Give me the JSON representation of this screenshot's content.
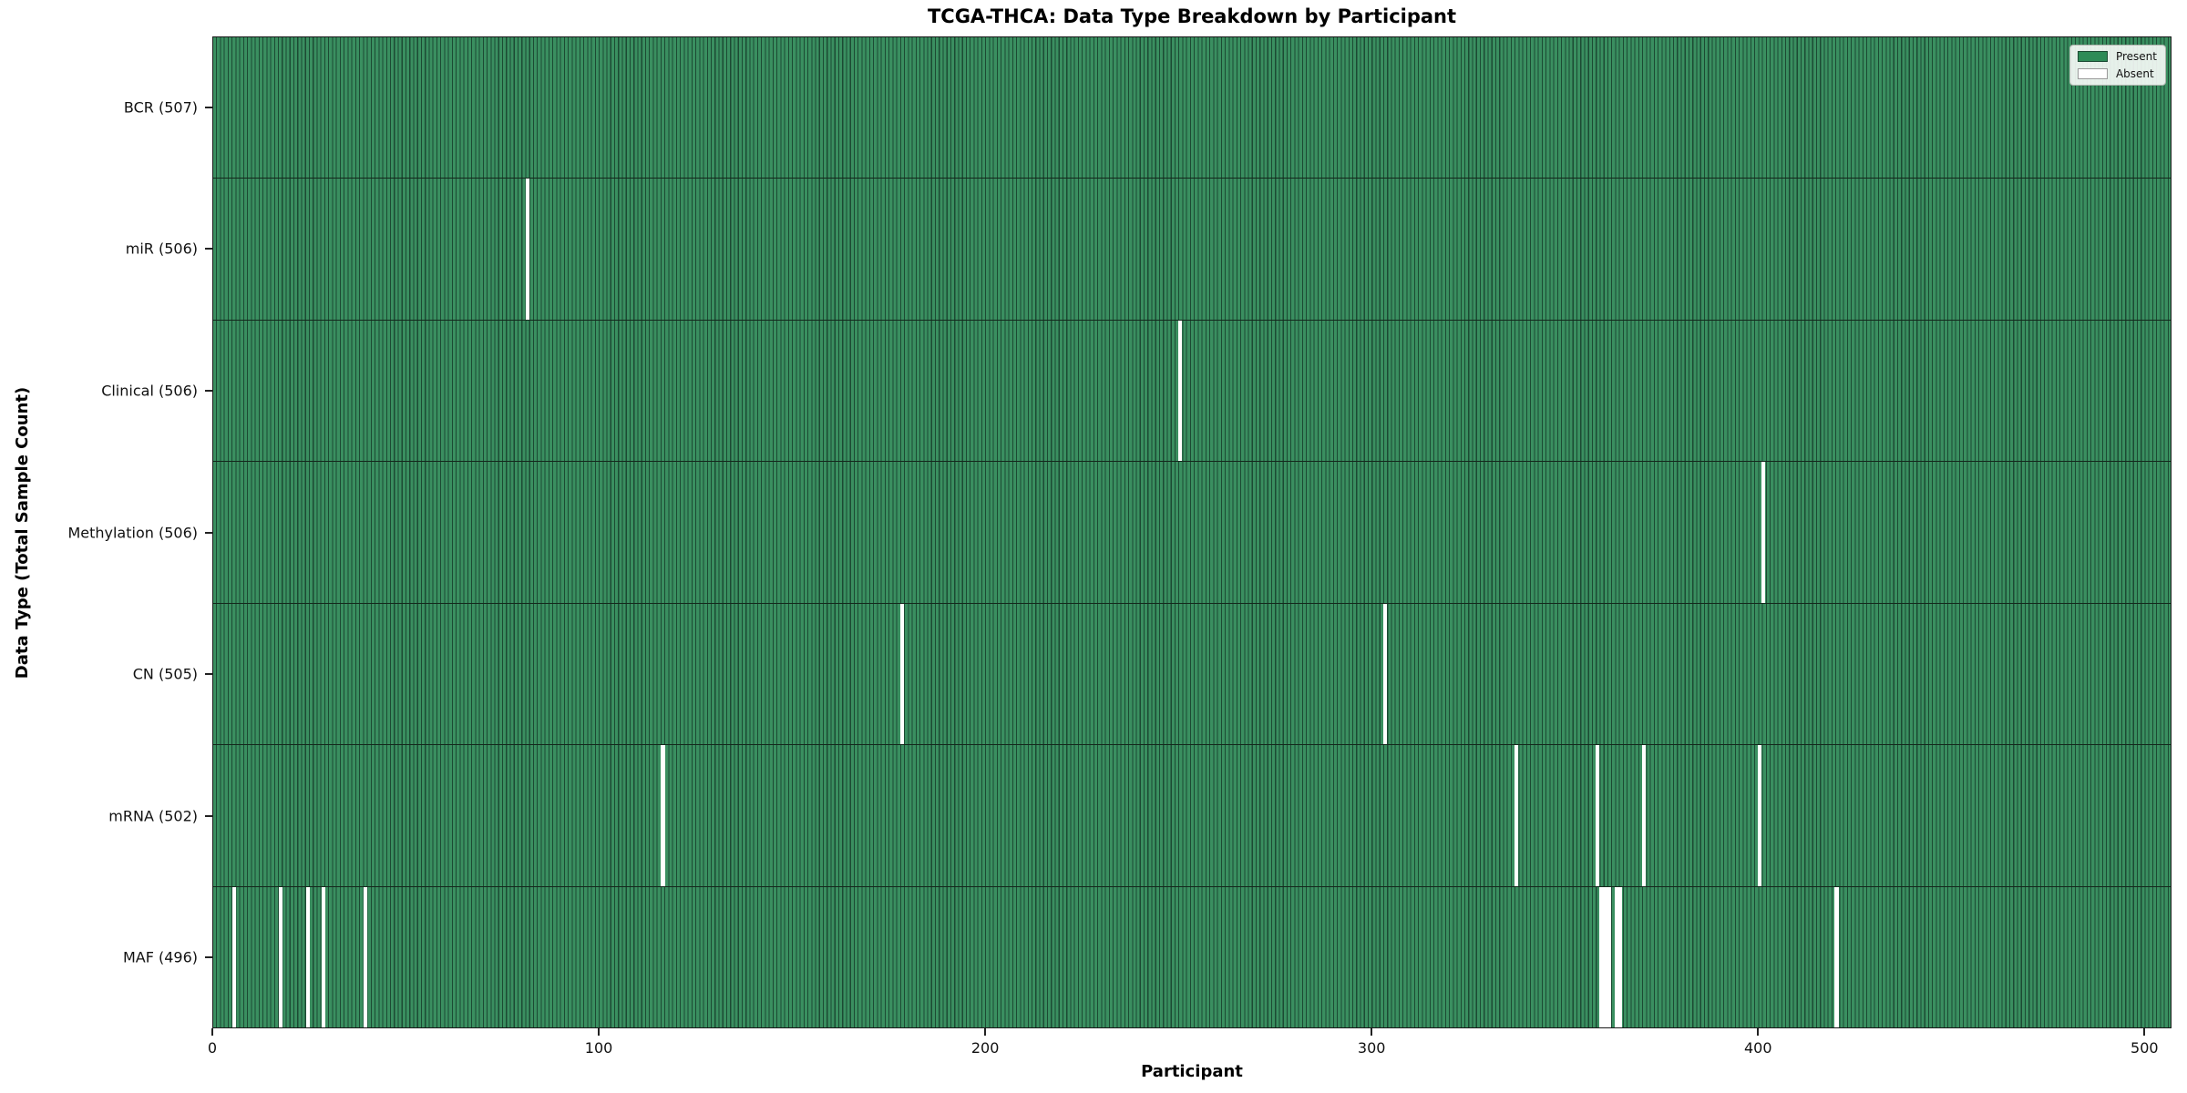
{
  "chart_data": {
    "type": "heatmap",
    "title": "TCGA-THCA: Data Type Breakdown by Participant",
    "xlabel": "Participant",
    "ylabel": "Data Type (Total Sample Count)",
    "x_ticks": [
      0,
      100,
      200,
      300,
      400,
      500
    ],
    "xlim": [
      0,
      507
    ],
    "n_participants": 507,
    "grid": false,
    "legend_position": "upper right",
    "legend": [
      {
        "label": "Present",
        "color": "#2E8B57"
      },
      {
        "label": "Absent",
        "color": "#FFFFFF"
      }
    ],
    "colors": {
      "present_fill": "#3A8F60",
      "bar_edge": "#1C4A33",
      "absent_fill": "#FFFFFF"
    },
    "rows": [
      {
        "label": "BCR (507)",
        "name": "bcr",
        "total": 507,
        "absent": []
      },
      {
        "label": "miR (506)",
        "name": "mir",
        "total": 506,
        "absent": [
          81
        ]
      },
      {
        "label": "Clinical (506)",
        "name": "clinical",
        "total": 506,
        "absent": [
          250
        ]
      },
      {
        "label": "Methylation (506)",
        "name": "methylation",
        "total": 506,
        "absent": [
          401
        ]
      },
      {
        "label": "CN (505)",
        "name": "cn",
        "total": 505,
        "absent": [
          178,
          303
        ]
      },
      {
        "label": "mRNA (502)",
        "name": "mrna",
        "total": 502,
        "absent": [
          116,
          337,
          358,
          370,
          400
        ]
      },
      {
        "label": "MAF (496)",
        "name": "maf",
        "total": 496,
        "absent": [
          5,
          17,
          24,
          28,
          39,
          359,
          360,
          361,
          363,
          364,
          420
        ]
      }
    ]
  }
}
